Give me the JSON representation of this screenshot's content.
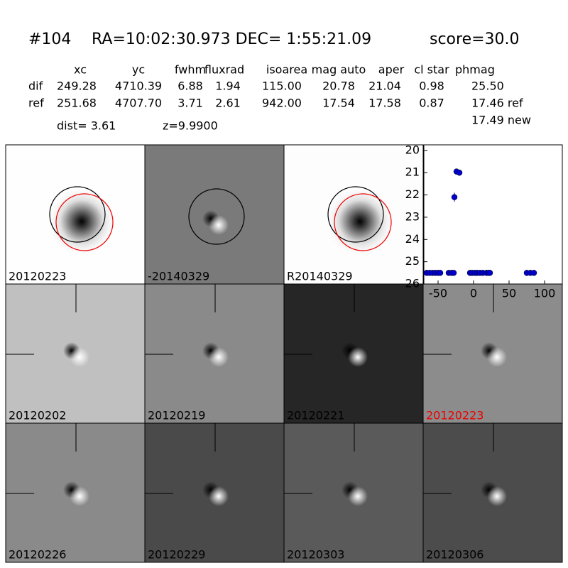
{
  "header": {
    "id": "#104",
    "coords": "RA=10:02:30.973 DEC= 1:55:21.09",
    "score": "score=30.0"
  },
  "table": {
    "columns": [
      "xc",
      "yc",
      "fwhm",
      "fluxrad",
      "isoarea",
      "mag auto",
      "aper",
      "cl star",
      "phmag"
    ],
    "rows": [
      [
        "dif",
        "249.28",
        "4710.39",
        "6.88",
        "1.94",
        "115.00",
        "20.78",
        "21.04",
        "0.98",
        "25.50"
      ],
      [
        "ref",
        "251.68",
        "4707.70",
        "3.71",
        "2.61",
        "942.00",
        "17.54",
        "17.58",
        "0.87",
        "17.46 ref"
      ]
    ],
    "extra": "17.49 new"
  },
  "dist": "dist=  3.61",
  "z": "z=9.9900",
  "panels": [
    "20120223",
    "-20140329",
    "R20140329",
    "20120202",
    "20120219",
    "20120221",
    "20120223",
    "20120226",
    "20120229",
    "20120303",
    "20120306"
  ],
  "chart_data": {
    "type": "scatter",
    "color": "#0000cc",
    "x": [
      -66,
      -62,
      -58,
      -54,
      -50,
      -47,
      -35,
      -31,
      -28,
      -27,
      -24,
      -20,
      -5,
      -2,
      2,
      5,
      9,
      13,
      18,
      21,
      23,
      75,
      80,
      85
    ],
    "values": [
      25.5,
      25.5,
      25.5,
      25.5,
      25.5,
      25.5,
      25.5,
      25.5,
      25.5,
      22.1,
      20.95,
      21.0,
      25.5,
      25.5,
      25.5,
      25.5,
      25.5,
      25.5,
      25.5,
      25.5,
      25.5,
      25.5,
      25.5,
      25.5
    ],
    "errors": [
      0.1,
      0.1,
      0.1,
      0.1,
      0.1,
      0.1,
      0.1,
      0.1,
      0.1,
      0.2,
      0.05,
      0.05,
      0.1,
      0.1,
      0.1,
      0.1,
      0.1,
      0.1,
      0.1,
      0.1,
      0.1,
      0.1,
      0.1,
      0.1
    ],
    "xlim": [
      -70,
      125
    ],
    "xticks": [
      -50,
      0,
      50,
      100
    ],
    "ylim": [
      19.75,
      26
    ],
    "yticks": [
      20,
      21,
      22,
      23,
      24,
      25,
      26
    ],
    "invert_y": true
  }
}
